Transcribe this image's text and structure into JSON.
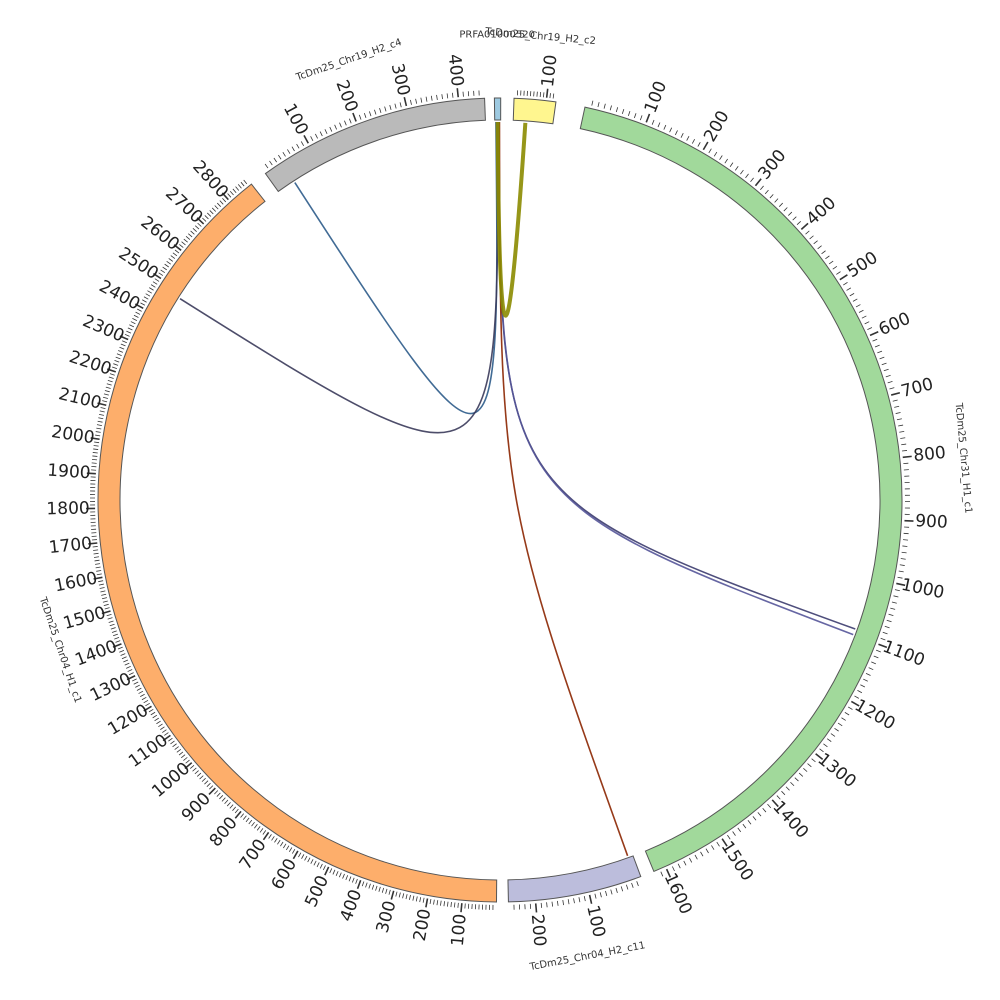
{
  "chart_data": {
    "type": "circos",
    "title": "",
    "segments": [
      {
        "id": "seg-chr31-h1",
        "label": "TcDm25_Chr31_H1_c1",
        "length": 1620,
        "color": "#a1d99b",
        "label_step": 100,
        "start_deg": 12.2,
        "end_deg": 157.5
      },
      {
        "id": "seg-chr04-h2",
        "label": "TcDm25_Chr04_H2_c11",
        "length": 250,
        "color": "#bcbddc",
        "label_step": 100,
        "start_deg": 159.5,
        "end_deg": 178.8
      },
      {
        "id": "seg-chr04-h1",
        "label": "TcDm25_Chr04_H1_c1",
        "length": 2880,
        "color": "#fdae6b",
        "label_step": 100,
        "start_deg": 180.5,
        "end_deg": 321.8
      },
      {
        "id": "seg-chr19-c4",
        "label": "TcDm25_Chr19_H2_c4",
        "length": 450,
        "color": "#bababa",
        "label_step": 100,
        "start_deg": 324.3,
        "end_deg": 357.8
      },
      {
        "id": "seg-prfa",
        "label": "PRFA01000520",
        "length": 10,
        "color": "#9ecae1",
        "label_step": 0,
        "start_deg": 359.2,
        "end_deg": 360.1
      },
      {
        "id": "seg-chr19-c2",
        "label": "TcDm25_Chr19_H2_c2",
        "length": 130,
        "color": "#fff68f",
        "label_step": 100,
        "start_deg": 2.0,
        "end_deg": 8.0
      }
    ],
    "links": [
      {
        "from": "seg-prfa",
        "from_pos": 2,
        "to": "seg-chr19-c4",
        "to_pos": 38,
        "color": "#2c5b8a"
      },
      {
        "from": "seg-prfa",
        "from_pos": 4,
        "to": "seg-chr04-h1",
        "to_pos": 2480,
        "color": "#3a3a5a"
      },
      {
        "from": "seg-prfa",
        "from_pos": 6,
        "to": "seg-chr31-h1",
        "to_pos": 1090,
        "color": "#3b3b6e"
      },
      {
        "from": "seg-prfa",
        "from_pos": 7,
        "to": "seg-chr31-h1",
        "to_pos": 1100,
        "color": "#555599"
      },
      {
        "from": "seg-prfa",
        "from_pos": 8,
        "to": "seg-chr04-h2",
        "to_pos": 10,
        "color": "#8b2500"
      },
      {
        "from": "seg-prfa",
        "from_pos": 5,
        "to": "seg-chr19-c2",
        "to_pos": 40,
        "color": "#8b8b00"
      }
    ]
  }
}
